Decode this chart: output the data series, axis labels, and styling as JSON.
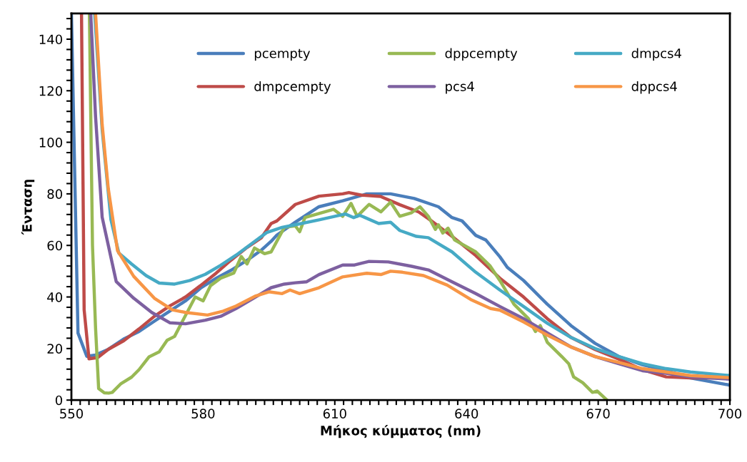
{
  "chart_data": {
    "type": "line",
    "xlabel": "Μήκος κύμματος (nm)",
    "ylabel": "Ένταση",
    "xlim": [
      550,
      700
    ],
    "ylim": [
      0,
      150
    ],
    "xticks": [
      550,
      {
        "value": 552,
        "label": null
      },
      {
        "value": 554,
        "label": null
      },
      {
        "value": 556,
        "label": null
      },
      {
        "value": 558,
        "label": null
      },
      {
        "value": 560,
        "label": null
      },
      {
        "value": 562,
        "label": null
      },
      {
        "value": 564,
        "label": null
      },
      {
        "value": 566,
        "label": null
      },
      {
        "value": 568,
        "label": null
      },
      {
        "value": 570,
        "label": null
      },
      {
        "value": 572,
        "label": null
      },
      {
        "value": 574,
        "label": null
      },
      {
        "value": 576,
        "label": null
      },
      {
        "value": 578,
        "label": null
      },
      580,
      {
        "value": 582,
        "label": null
      },
      {
        "value": 584,
        "label": null
      },
      {
        "value": 586,
        "label": null
      },
      {
        "value": 588,
        "label": null
      },
      {
        "value": 590,
        "label": null
      },
      {
        "value": 592,
        "label": null
      },
      {
        "value": 594,
        "label": null
      },
      {
        "value": 596,
        "label": null
      },
      {
        "value": 598,
        "label": null
      },
      {
        "value": 600,
        "label": null
      },
      {
        "value": 602,
        "label": null
      },
      {
        "value": 604,
        "label": null
      },
      {
        "value": 606,
        "label": null
      },
      {
        "value": 608,
        "label": null
      },
      610,
      {
        "value": 612,
        "label": null
      },
      {
        "value": 614,
        "label": null
      },
      {
        "value": 616,
        "label": null
      },
      {
        "value": 618,
        "label": null
      },
      {
        "value": 620,
        "label": null
      },
      {
        "value": 622,
        "label": null
      },
      {
        "value": 624,
        "label": null
      },
      {
        "value": 626,
        "label": null
      },
      {
        "value": 628,
        "label": null
      },
      {
        "value": 630,
        "label": null
      },
      {
        "value": 632,
        "label": null
      },
      {
        "value": 634,
        "label": null
      },
      {
        "value": 636,
        "label": null
      },
      {
        "value": 638,
        "label": null
      },
      640,
      {
        "value": 642,
        "label": null
      },
      {
        "value": 644,
        "label": null
      },
      {
        "value": 646,
        "label": null
      },
      {
        "value": 648,
        "label": null
      },
      {
        "value": 650,
        "label": null
      },
      {
        "value": 652,
        "label": null
      },
      {
        "value": 654,
        "label": null
      },
      {
        "value": 656,
        "label": null
      },
      {
        "value": 658,
        "label": null
      },
      {
        "value": 660,
        "label": null
      },
      {
        "value": 662,
        "label": null
      },
      {
        "value": 664,
        "label": null
      },
      {
        "value": 666,
        "label": null
      },
      {
        "value": 668,
        "label": null
      },
      670,
      {
        "value": 672,
        "label": null
      },
      {
        "value": 674,
        "label": null
      },
      {
        "value": 676,
        "label": null
      },
      {
        "value": 678,
        "label": null
      },
      {
        "value": 680,
        "label": null
      },
      {
        "value": 682,
        "label": null
      },
      {
        "value": 684,
        "label": null
      },
      {
        "value": 686,
        "label": null
      },
      {
        "value": 688,
        "label": null
      },
      {
        "value": 690,
        "label": null
      },
      {
        "value": 692,
        "label": null
      },
      {
        "value": 694,
        "label": null
      },
      {
        "value": 696,
        "label": null
      },
      {
        "value": 698,
        "label": null
      },
      700
    ],
    "yticks": [
      0,
      {
        "value": 4,
        "label": null
      },
      {
        "value": 8,
        "label": null
      },
      {
        "value": 12,
        "label": null
      },
      {
        "value": 16,
        "label": null
      },
      20,
      {
        "value": 24,
        "label": null
      },
      {
        "value": 28,
        "label": null
      },
      {
        "value": 32,
        "label": null
      },
      {
        "value": 36,
        "label": null
      },
      40,
      {
        "value": 44,
        "label": null
      },
      {
        "value": 48,
        "label": null
      },
      {
        "value": 52,
        "label": null
      },
      {
        "value": 56,
        "label": null
      },
      60,
      {
        "value": 64,
        "label": null
      },
      {
        "value": 68,
        "label": null
      },
      {
        "value": 72,
        "label": null
      },
      {
        "value": 76,
        "label": null
      },
      80,
      {
        "value": 84,
        "label": null
      },
      {
        "value": 88,
        "label": null
      },
      {
        "value": 92,
        "label": null
      },
      {
        "value": 96,
        "label": null
      },
      100,
      {
        "value": 104,
        "label": null
      },
      {
        "value": 108,
        "label": null
      },
      {
        "value": 112,
        "label": null
      },
      {
        "value": 116,
        "label": null
      },
      120,
      {
        "value": 124,
        "label": null
      },
      {
        "value": 128,
        "label": null
      },
      {
        "value": 132,
        "label": null
      },
      {
        "value": 136,
        "label": null
      },
      140,
      {
        "value": 144,
        "label": null
      },
      {
        "value": 148,
        "label": null
      }
    ],
    "grid": false,
    "legend": "top",
    "marker": "none",
    "line_style": "solid",
    "series": [
      {
        "name": "pcempty",
        "color": "#4a7ebb",
        "x": [
          550,
          551.5,
          553.5,
          555.5,
          558.4,
          561.9,
          565.4,
          568.9,
          572.4,
          576,
          579.4,
          583,
          586.3,
          590,
          593.3,
          595.5,
          596.8,
          601,
          606.4,
          611.8,
          617.3,
          622.7,
          628.1,
          633.6,
          636.7,
          639,
          642.1,
          644.4,
          647.6,
          649.3,
          653,
          658.4,
          663.8,
          669.3,
          674.7,
          680.1,
          685.5,
          691,
          700
        ],
        "values": [
          150,
          26,
          17,
          17.5,
          19.7,
          23.7,
          26.6,
          30.6,
          34.5,
          38.5,
          43.4,
          47.3,
          50.3,
          54.2,
          58.2,
          61.6,
          64,
          69,
          75,
          77.3,
          80,
          80,
          78.2,
          75,
          70.8,
          69.5,
          63.9,
          62.1,
          55.6,
          51.5,
          46.4,
          37.2,
          28.9,
          22,
          16.9,
          13.7,
          11.4,
          8.6,
          5.8
        ]
      },
      {
        "name": "dmpcempty",
        "color": "#be4b48",
        "x": [
          552.3,
          552.9,
          554,
          556,
          558.4,
          561.9,
          565.4,
          568.9,
          572.4,
          576,
          579.4,
          583,
          586.3,
          590,
          593.3,
          595.5,
          596.8,
          601,
          606.4,
          611.8,
          613.2,
          616.1,
          620.4,
          624.8,
          629.1,
          631.3,
          636.7,
          642.1,
          647.6,
          653,
          658.4,
          663.8,
          669.3,
          674.7,
          680.1,
          685.5,
          691,
          700
        ],
        "values": [
          150,
          35,
          16,
          16.5,
          19.7,
          23,
          27.6,
          32.5,
          36.5,
          40,
          44.4,
          49.3,
          54.2,
          59.2,
          63,
          68.5,
          69.5,
          75.9,
          79.1,
          80,
          80.5,
          79.5,
          79,
          75.8,
          73,
          70.4,
          63.5,
          56.1,
          47.3,
          40,
          31.6,
          24.3,
          19.6,
          15.9,
          11.8,
          9,
          8.6,
          8.6
        ]
      },
      {
        "name": "dppcempty",
        "color": "#98b954",
        "x": [
          554.1,
          554.8,
          555.5,
          556.2,
          557.5,
          558.5,
          559.3,
          561.3,
          563.7,
          565.4,
          567.7,
          570,
          571.8,
          573.5,
          575.3,
          578.2,
          580,
          581.7,
          584,
          587,
          588.7,
          590,
          591.7,
          594,
          595.5,
          598.5,
          601,
          602,
          603.2,
          609.7,
          611.8,
          613.7,
          615.1,
          617.8,
          620.5,
          622.7,
          624.8,
          627.5,
          629.4,
          631.3,
          632.9,
          633.6,
          634.6,
          635.8,
          637.3,
          642.1,
          645.4,
          647.6,
          650.8,
          654.1,
          655.7,
          656.8,
          658.4,
          661.7,
          663.3,
          664.4,
          666.5,
          668.7,
          669.8,
          672
        ],
        "values": [
          150,
          60,
          28,
          4.5,
          2.8,
          2.7,
          3,
          6.4,
          8.9,
          11.8,
          16.8,
          18.7,
          23.2,
          24.7,
          30.6,
          40,
          38.5,
          44.4,
          47.3,
          49.3,
          55.7,
          52.8,
          59,
          56.8,
          57.5,
          67,
          67.6,
          65.3,
          70.8,
          74,
          71.3,
          76.3,
          71.3,
          75.9,
          73,
          76.8,
          71.3,
          72.7,
          75,
          71.3,
          66.2,
          68,
          64.8,
          66.7,
          62.1,
          57.5,
          52,
          46.4,
          37.2,
          31.6,
          26.6,
          28.9,
          22.4,
          16.9,
          14.1,
          9,
          6.7,
          3,
          3.5,
          0
        ]
      },
      {
        "name": "pcs4",
        "color": "#7d60a0",
        "x": [
          554.4,
          555.5,
          557,
          560.2,
          564.2,
          568.3,
          572.4,
          576,
          580.5,
          584,
          587.5,
          591,
          595.5,
          598.5,
          601,
          603.6,
          606.4,
          611.8,
          614.5,
          617.8,
          622.2,
          627.5,
          631.3,
          636.7,
          642.1,
          647.6,
          653,
          658.4,
          663.8,
          669.3,
          674.7,
          680.1,
          685.5,
          691,
          700
        ],
        "values": [
          150,
          110,
          71,
          46,
          39.5,
          34,
          30,
          29.6,
          31,
          32.5,
          35.5,
          39,
          43.6,
          45,
          45.5,
          45.9,
          48.7,
          52.4,
          52.4,
          53.8,
          53.6,
          51.9,
          50.5,
          45.9,
          41.3,
          36.3,
          31.6,
          26.1,
          20.6,
          16.9,
          14.1,
          11.4,
          10.4,
          9,
          8.1
        ]
      },
      {
        "name": "dmpcs4",
        "color": "#46aac5",
        "x": [
          555.3,
          557,
          559,
          560.8,
          563.7,
          567,
          570,
          573.5,
          577,
          580.5,
          584,
          587.5,
          591,
          594.5,
          598,
          601,
          606.4,
          612.4,
          614.3,
          615.7,
          620,
          622.7,
          624.8,
          628.6,
          631.3,
          636.7,
          642.1,
          647.6,
          653,
          658.4,
          663.8,
          669.3,
          674.7,
          680.1,
          685.5,
          691,
          700
        ],
        "values": [
          150,
          105,
          70,
          57,
          52.8,
          48.3,
          45.4,
          45,
          46.4,
          48.8,
          52.3,
          56.2,
          60.6,
          65,
          67,
          68,
          69.9,
          72.2,
          70.8,
          71.7,
          68.5,
          69,
          65.8,
          63.5,
          63,
          57.5,
          49.6,
          42.7,
          36.3,
          29.8,
          24.3,
          20,
          16.9,
          14.1,
          12.2,
          10.9,
          9.5
        ]
      },
      {
        "name": "dppcs4",
        "color": "#f79646",
        "x": [
          555.5,
          557,
          558.4,
          560.5,
          564.2,
          568.9,
          573,
          576,
          581,
          584.6,
          587.5,
          592,
          595,
          598,
          599.8,
          602,
          606.4,
          611.8,
          617.3,
          620.5,
          622.7,
          625.4,
          630.2,
          635.6,
          641,
          645.5,
          647.6,
          653,
          658.4,
          663.8,
          669.3,
          674.7,
          680.1,
          685.5,
          691,
          700
        ],
        "values": [
          150,
          107,
          82,
          58,
          48,
          39.5,
          35,
          34,
          33,
          34.5,
          36.5,
          40.4,
          42,
          41.3,
          42.7,
          41.3,
          43.6,
          47.8,
          49.2,
          48.7,
          50,
          49.6,
          48.3,
          44.6,
          39,
          35.5,
          34.9,
          30.3,
          25.2,
          20.6,
          16.9,
          14.6,
          12.2,
          10.9,
          9.5,
          8.7
        ]
      }
    ]
  }
}
